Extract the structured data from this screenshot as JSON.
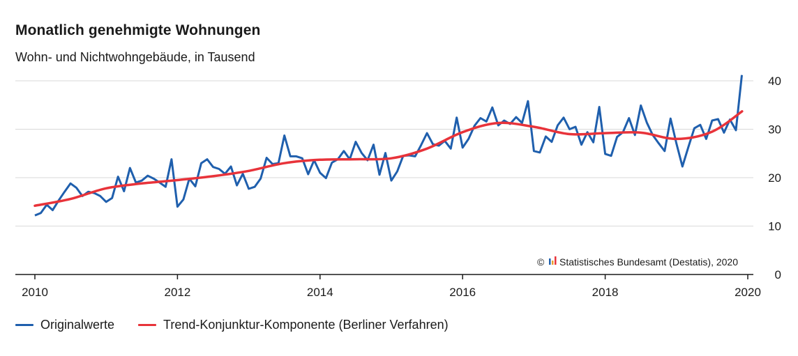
{
  "chart_data": {
    "type": "line",
    "title": "Monatlich genehmigte Wohnungen",
    "subtitle": "Wohn- und Nichtwohngebäude, in Tausend",
    "xlabel": "",
    "ylabel": "",
    "xlim": [
      2010,
      2020
    ],
    "ylim": [
      0,
      40
    ],
    "x_ticks": [
      "2010",
      "2012",
      "2014",
      "2016",
      "2018",
      "2020"
    ],
    "y_ticks": [
      "0",
      "10",
      "20",
      "30",
      "40"
    ],
    "y_axis_side": "right",
    "grid": true,
    "legend_position": "bottom-left",
    "credit": "Statistisches Bundesamt (Destatis), 2020",
    "series": [
      {
        "name": "Originalwerte",
        "color": "#1f5fad",
        "x": [
          2010.0,
          2010.0833,
          2010.1667,
          2010.25,
          2010.3333,
          2010.4167,
          2010.5,
          2010.5833,
          2010.6667,
          2010.75,
          2010.8333,
          2010.9167,
          2011.0,
          2011.0833,
          2011.1667,
          2011.25,
          2011.3333,
          2011.4167,
          2011.5,
          2011.5833,
          2011.6667,
          2011.75,
          2011.8333,
          2011.9167,
          2012.0,
          2012.0833,
          2012.1667,
          2012.25,
          2012.3333,
          2012.4167,
          2012.5,
          2012.5833,
          2012.6667,
          2012.75,
          2012.8333,
          2012.9167,
          2013.0,
          2013.0833,
          2013.1667,
          2013.25,
          2013.3333,
          2013.4167,
          2013.5,
          2013.5833,
          2013.6667,
          2013.75,
          2013.8333,
          2013.9167,
          2014.0,
          2014.0833,
          2014.1667,
          2014.25,
          2014.3333,
          2014.4167,
          2014.5,
          2014.5833,
          2014.6667,
          2014.75,
          2014.8333,
          2014.9167,
          2015.0,
          2015.0833,
          2015.1667,
          2015.25,
          2015.3333,
          2015.4167,
          2015.5,
          2015.5833,
          2015.6667,
          2015.75,
          2015.8333,
          2015.9167,
          2016.0,
          2016.0833,
          2016.1667,
          2016.25,
          2016.3333,
          2016.4167,
          2016.5,
          2016.5833,
          2016.6667,
          2016.75,
          2016.8333,
          2016.9167,
          2017.0,
          2017.0833,
          2017.1667,
          2017.25,
          2017.3333,
          2017.4167,
          2017.5,
          2017.5833,
          2017.6667,
          2017.75,
          2017.8333,
          2017.9167,
          2018.0,
          2018.0833,
          2018.1667,
          2018.25,
          2018.3333,
          2018.4167,
          2018.5,
          2018.5833,
          2018.6667,
          2018.75,
          2018.8333,
          2018.9167,
          2019.0,
          2019.0833,
          2019.1667,
          2019.25,
          2019.3333,
          2019.4167,
          2019.5,
          2019.5833,
          2019.6667,
          2019.75,
          2019.8333,
          2019.9167
        ],
        "values": [
          12.2,
          12.7,
          14.4,
          13.3,
          15.3,
          17.1,
          18.8,
          17.9,
          16.2,
          17.1,
          16.8,
          16.2,
          15.0,
          15.8,
          20.2,
          17.2,
          22.0,
          19.0,
          19.4,
          20.4,
          19.8,
          19.0,
          18.1,
          23.8,
          14.0,
          15.5,
          19.8,
          18.2,
          23.0,
          23.8,
          22.2,
          21.8,
          20.8,
          22.3,
          18.4,
          20.8,
          17.7,
          18.1,
          19.8,
          24.1,
          22.8,
          23.0,
          28.7,
          24.4,
          24.4,
          24.0,
          20.7,
          23.6,
          21.0,
          19.9,
          23.1,
          23.8,
          25.5,
          23.8,
          27.4,
          25.1,
          23.6,
          26.8,
          20.6,
          25.1,
          19.4,
          21.3,
          24.5,
          24.6,
          24.4,
          26.7,
          29.2,
          26.9,
          26.6,
          27.6,
          26.0,
          32.4,
          26.2,
          28.0,
          30.7,
          32.3,
          31.6,
          34.5,
          30.8,
          31.8,
          31.1,
          32.5,
          31.3,
          35.8,
          25.5,
          25.2,
          28.5,
          27.4,
          30.8,
          32.4,
          30.0,
          30.5,
          26.8,
          29.4,
          27.3,
          34.6,
          24.9,
          24.5,
          28.4,
          29.4,
          32.3,
          28.8,
          34.9,
          31.4,
          28.8,
          27.1,
          25.5,
          32.2,
          27.0,
          22.3,
          26.3,
          30.2,
          30.9,
          28.0,
          31.8,
          32.1,
          29.3,
          32.0,
          29.8,
          41.2
        ]
      },
      {
        "name": "Trend-Konjunktur-Komponente (Berliner Verfahren)",
        "color": "#e8333a",
        "x": [
          2010.0,
          2010.5,
          2011.0,
          2011.5,
          2012.0,
          2012.5,
          2013.0,
          2013.5,
          2014.0,
          2014.5,
          2015.0,
          2015.5,
          2016.0,
          2016.5,
          2017.0,
          2017.5,
          2018.0,
          2018.5,
          2019.0,
          2019.5,
          2019.92
        ],
        "values": [
          14.2,
          15.6,
          17.8,
          18.8,
          19.5,
          20.3,
          21.4,
          23.0,
          23.7,
          23.8,
          24.0,
          26.0,
          29.4,
          31.3,
          30.5,
          29.0,
          29.2,
          29.3,
          28.0,
          29.5,
          33.7
        ]
      }
    ]
  }
}
